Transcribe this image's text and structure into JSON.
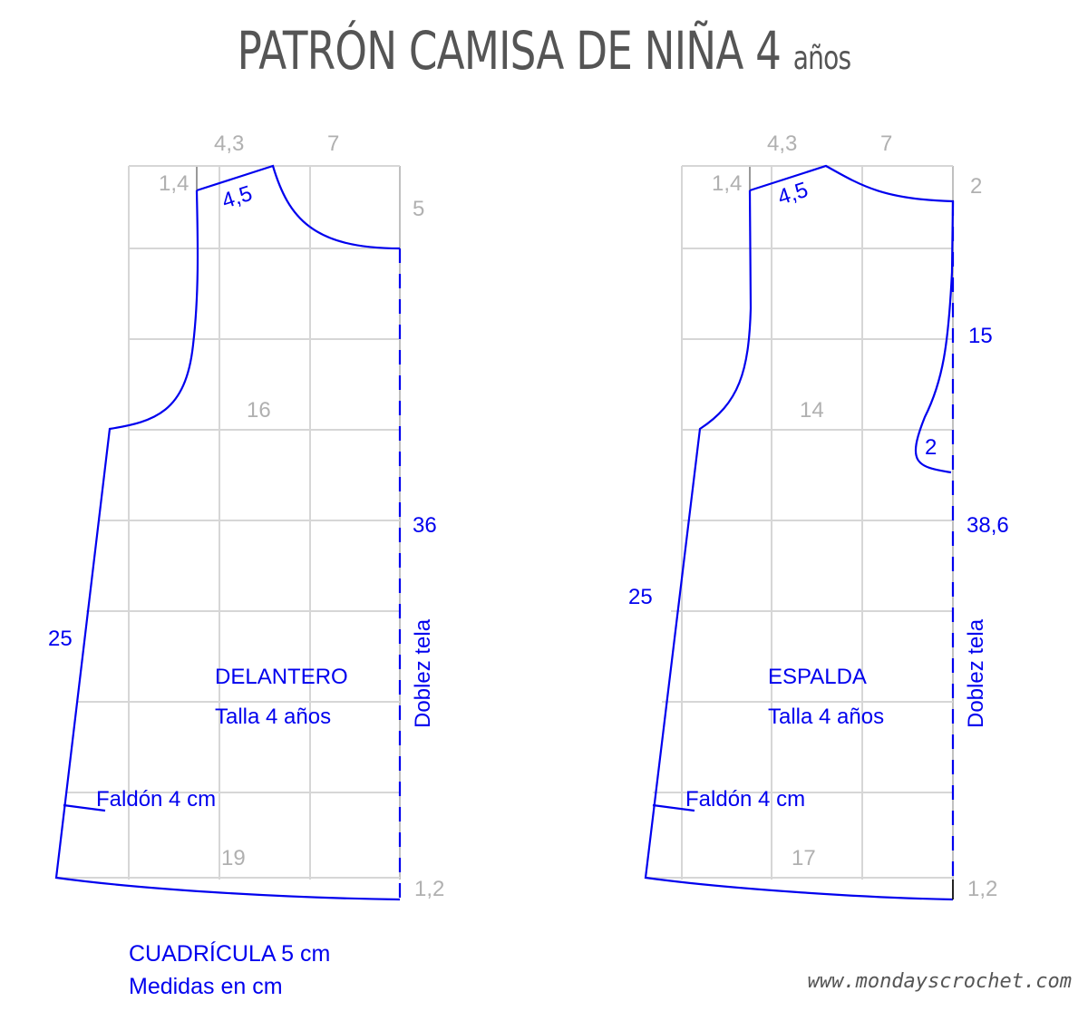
{
  "title": {
    "main": "PATRÓN CAMISA DE NIÑA 4",
    "suffix": "años"
  },
  "front": {
    "top_labels": [
      "4,3",
      "7"
    ],
    "shoulder_drop": "1,4",
    "shoulder": "4,5",
    "neck_depth": "5",
    "width_chest": "16",
    "length": "36",
    "side": "25",
    "hem_width": "19",
    "hem_drop": "1,2",
    "fold": "Doblez tela",
    "name": "DELANTERO",
    "size": "Talla 4 años",
    "hem_allowance": "Faldón 4 cm"
  },
  "back": {
    "top_labels": [
      "4,3",
      "7"
    ],
    "shoulder_drop": "1,4",
    "shoulder": "4,5",
    "neck_depth": "2",
    "width_chest": "14",
    "opening": "15",
    "opening_width": "2",
    "length": "38,6",
    "side": "25",
    "hem_width": "17",
    "hem_drop": "1,2",
    "fold": "Doblez tela",
    "name": "ESPALDA",
    "size": "Talla 4 años",
    "hem_allowance": "Faldón 4 cm"
  },
  "notes": {
    "grid": "CUADRÍCULA 5 cm",
    "units": "Medidas en cm"
  },
  "website": "www.mondayscrochet.com",
  "colors": {
    "pattern": "#0000ee",
    "grid": "#d6d6d6",
    "labels": "#b0b0b0"
  }
}
